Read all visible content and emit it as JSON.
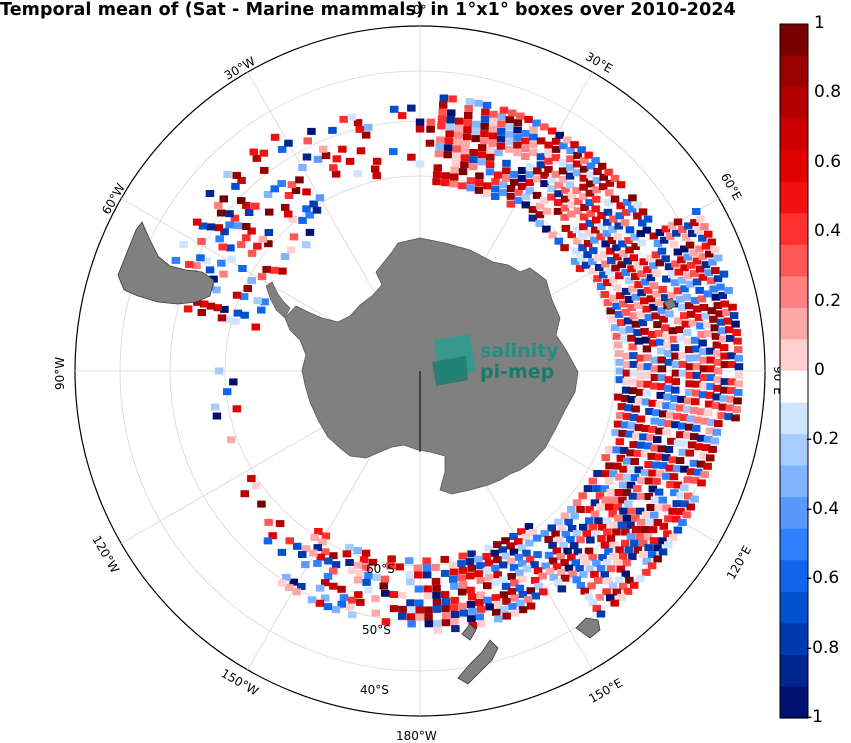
{
  "title": "Temporal mean of (Sat - Marine mammals) in 1°x1° boxes over 2010-2024",
  "logo": {
    "line1": "salinity",
    "line2": "pi-mep"
  },
  "colorbar": {
    "ticks": [
      "1",
      "0.8",
      "0.6",
      "0.4",
      "0.2",
      "0",
      "-0.2",
      "-0.4",
      "-0.6",
      "-0.8",
      "-1"
    ],
    "range": [
      -1,
      1
    ],
    "colors": [
      "#7a0000",
      "#9a0000",
      "#b40000",
      "#cc0000",
      "#e00000",
      "#f21010",
      "#ff3030",
      "#ff5656",
      "#ff8080",
      "#ffa8a8",
      "#ffd0d0",
      "#ffffff",
      "#cfe4ff",
      "#a8ccff",
      "#80b4ff",
      "#5899ff",
      "#2e80ff",
      "#0f66ee",
      "#0050d0",
      "#003ab0",
      "#002690",
      "#001070"
    ]
  },
  "longitude_labels": {
    "lon_30w": "30°W",
    "lon_30e": "30°E",
    "lon_60w": "60°W",
    "lon_60e": "60°E",
    "lon_90w": "90°W",
    "lon_90e": "90°E",
    "lon_120w": "120°W",
    "lon_120e": "120°E",
    "lon_150w": "150°W",
    "lon_150e": "150°E",
    "lon_180w": "180°W",
    "lon_0": "0°"
  },
  "latitude_labels": {
    "lat_60s": "60°S",
    "lat_50s": "50°S",
    "lat_40s": "40°S"
  },
  "colors": {
    "land": "#808080",
    "frame": "#000000",
    "grid": "#d0d0d0",
    "logo": "#1a9a80"
  }
}
